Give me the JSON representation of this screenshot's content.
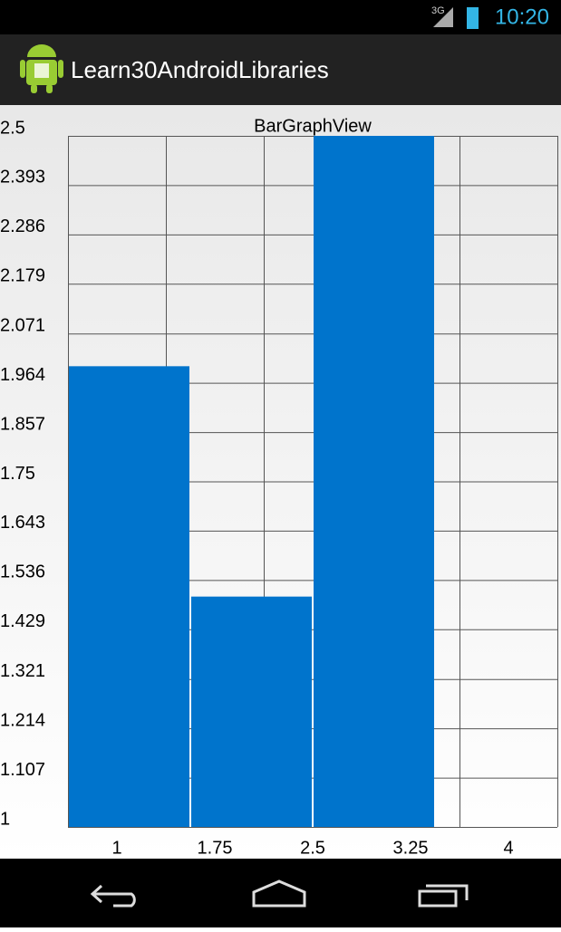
{
  "status_bar": {
    "network": "3G",
    "time": "10:20"
  },
  "action_bar": {
    "title": "Learn30AndroidLibraries"
  },
  "chart_data": {
    "type": "histogram",
    "title": "BarGraphView",
    "bins": [
      1,
      1.75,
      2.5,
      3.25
    ],
    "values": [
      2,
      1.5,
      2.5
    ],
    "color": "#0074cc",
    "xlim": [
      1,
      4
    ],
    "xticks": [
      1,
      1.75,
      2.5,
      3.25,
      4
    ],
    "ylim": [
      1,
      2.5
    ],
    "yticks": [
      2.5,
      2.393,
      2.286,
      2.179,
      2.071,
      1.964,
      1.857,
      1.75,
      1.643,
      1.536,
      1.429,
      1.321,
      1.214,
      1.107,
      1
    ],
    "grid": true
  }
}
